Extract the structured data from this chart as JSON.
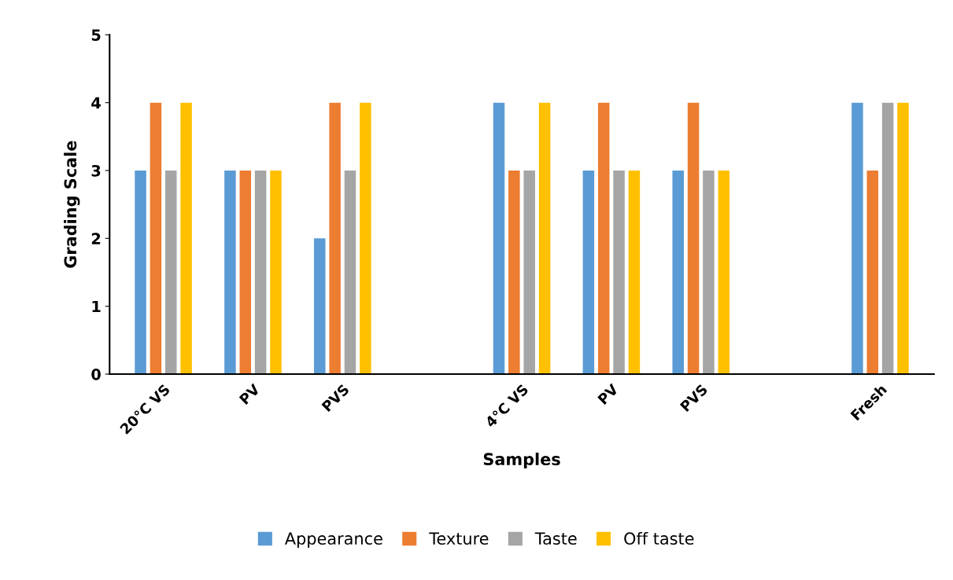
{
  "chart_data": {
    "type": "bar",
    "xlabel": "Samples",
    "ylabel": "Grading Scale",
    "categories": [
      "20°C VS",
      "PV",
      "PVS",
      null,
      "4°C VS",
      "PV",
      "PVS",
      null,
      "Fresh"
    ],
    "series": [
      {
        "name": "Appearance",
        "color": "#5b9bd5",
        "values": [
          3,
          3,
          2,
          null,
          4,
          3,
          3,
          null,
          4
        ]
      },
      {
        "name": "Texture",
        "color": "#ed7d31",
        "values": [
          4,
          3,
          4,
          null,
          3,
          4,
          4,
          null,
          3
        ]
      },
      {
        "name": "Taste",
        "color": "#a5a5a5",
        "values": [
          3,
          3,
          3,
          null,
          3,
          3,
          3,
          null,
          4
        ]
      },
      {
        "name": "Off taste",
        "color": "#ffc000",
        "values": [
          4,
          3,
          4,
          null,
          4,
          3,
          3,
          null,
          4
        ]
      }
    ],
    "ylim": [
      0,
      5
    ],
    "yticks": [
      0,
      1,
      2,
      3,
      4,
      5
    ],
    "grid": false,
    "legend": "bottom"
  }
}
